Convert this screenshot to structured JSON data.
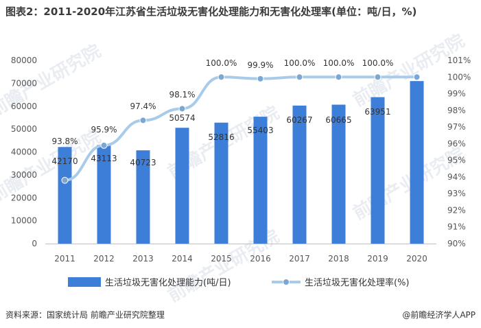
{
  "page": {
    "title": "图表2：2011-2020年江苏省生活垃圾无害化处理能力和无害化处理率(单位：吨/日，%)",
    "source": "资料来源：国家统计局 前瞻产业研究院整理",
    "brand": "@前瞻经济学人APP",
    "watermark": "前瞻产业研究院"
  },
  "chart_data": {
    "type": "bar",
    "categories": [
      "2011",
      "2012",
      "2013",
      "2014",
      "2015",
      "2016",
      "2017",
      "2018",
      "2019",
      "2020"
    ],
    "series": [
      {
        "name": "生活垃圾无害化处理能力(吨/日)",
        "type": "bar",
        "axis": "left",
        "color": "#3d7ed9",
        "values": [
          42170,
          43113,
          40723,
          50574,
          52816,
          55403,
          60267,
          60665,
          63951,
          70970
        ],
        "labels": [
          "42170",
          "43113",
          "40723",
          "50574",
          "52816",
          "55403",
          "60267",
          "60665",
          "63951",
          ""
        ]
      },
      {
        "name": "生活垃圾无害化处理率(%)",
        "type": "line",
        "axis": "right",
        "color": "#a9cbea",
        "values": [
          93.8,
          95.9,
          97.4,
          98.1,
          100.0,
          99.9,
          100.0,
          100.0,
          100.0,
          100.0
        ],
        "labels": [
          "93.8%",
          "95.9%",
          "97.4%",
          "98.1%",
          "100.0%",
          "99.9%",
          "100.0%",
          "100.0%",
          "100.0%",
          ""
        ]
      }
    ],
    "y_left": {
      "min": 0,
      "max": 80000,
      "ticks": [
        "0",
        "10000",
        "20000",
        "30000",
        "40000",
        "50000",
        "60000",
        "70000",
        "80000"
      ]
    },
    "y_right": {
      "min": 90,
      "max": 101,
      "ticks": [
        "90%",
        "91%",
        "92%",
        "93%",
        "94%",
        "95%",
        "96%",
        "97%",
        "98%",
        "99%",
        "100%",
        "101%"
      ]
    },
    "legend_position": "bottom"
  }
}
